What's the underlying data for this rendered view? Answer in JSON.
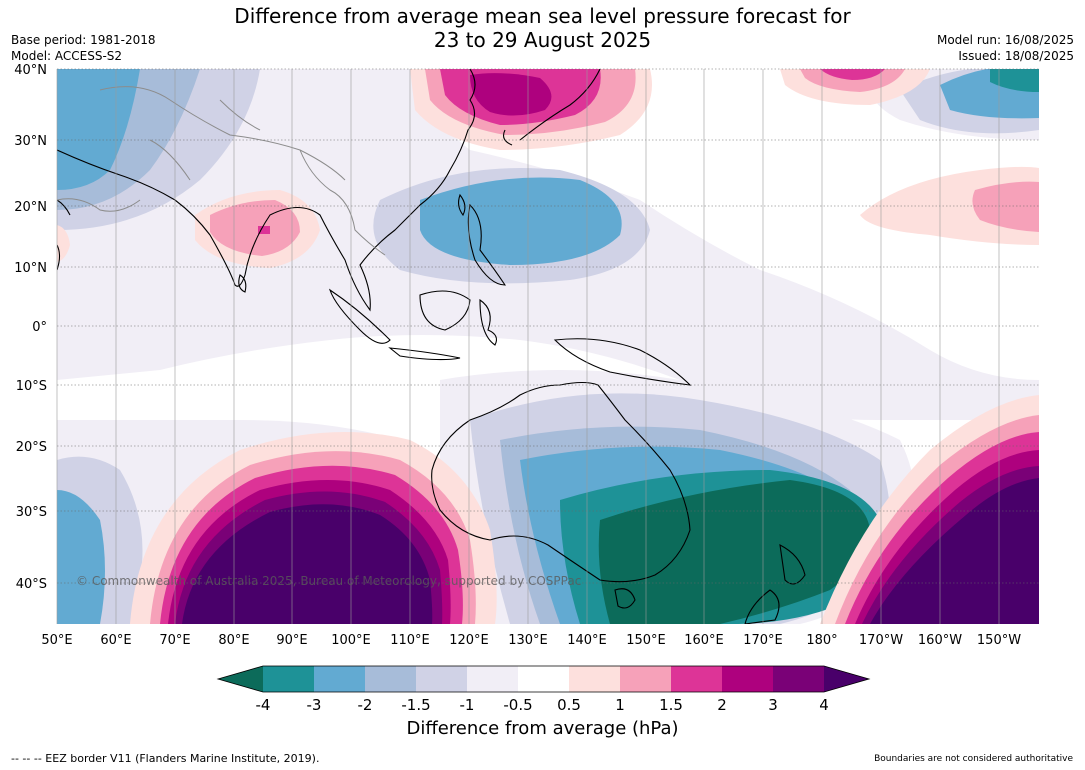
{
  "title_line1": "Difference from average mean sea level pressure forecast for",
  "title_line2": "23 to 29 August 2025",
  "base_period": "Base period: 1981-2018",
  "model": "Model: ACCESS-S2",
  "model_run": "Model run: 16/08/2025",
  "issued": "Issued: 18/08/2025",
  "lat_labels": [
    "40°N",
    "30°N",
    "20°N",
    "10°N",
    "0°",
    "10°S",
    "20°S",
    "30°S",
    "40°S"
  ],
  "lon_labels": [
    "50°E",
    "60°E",
    "70°E",
    "80°E",
    "90°E",
    "100°E",
    "110°E",
    "120°E",
    "130°E",
    "140°E",
    "150°E",
    "160°E",
    "170°E",
    "180°",
    "170°W",
    "160°W",
    "150°W"
  ],
  "copyright": "© Commonwealth of Australia 2025, Bureau of Meteorology, supported by COSPPac",
  "colorbar": {
    "title": "Difference from average (hPa)",
    "ticks": [
      "-4",
      "-3",
      "-2",
      "-1.5",
      "-1",
      "-0.5",
      "0.5",
      "1",
      "1.5",
      "2",
      "3",
      "4"
    ],
    "colors": [
      "#0c6b5a",
      "#1e9297",
      "#62aad2",
      "#a7bcd9",
      "#d0d2e6",
      "#f1eef6",
      "#ffffff",
      "#fde0dd",
      "#f6a1b9",
      "#dd3497",
      "#ae017e",
      "#7a0177",
      "#49006a"
    ]
  },
  "footer_left": "--  --  -- EEZ border V11 (Flanders Marine Institute, 2019).",
  "footer_right": "Boundaries are not considered authoritative"
}
